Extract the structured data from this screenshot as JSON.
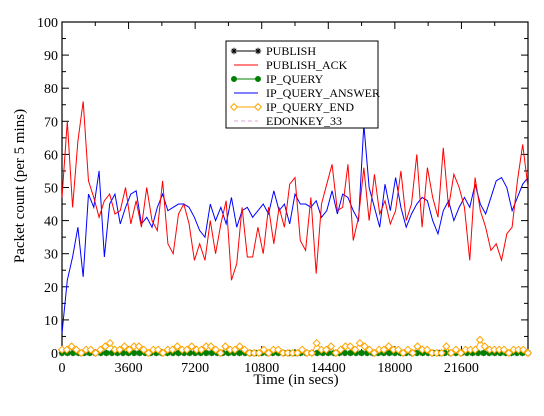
{
  "chart_data": {
    "type": "line",
    "xlabel": "Time (in secs)",
    "ylabel": "Packet count (per 5 mins)",
    "xlim": [
      0,
      25200
    ],
    "ylim": [
      0,
      100
    ],
    "xticks": [
      0,
      3600,
      7200,
      10800,
      14400,
      18000,
      21600
    ],
    "yticks": [
      0,
      10,
      20,
      30,
      40,
      50,
      60,
      70,
      80,
      90,
      100
    ],
    "grid": false,
    "legend_position": "top-center",
    "x_step": 300,
    "series": [
      {
        "name": "PUBLISH",
        "color": "#000000",
        "marker": "star",
        "values": [
          0,
          0,
          0,
          0,
          0,
          0,
          0,
          0,
          0,
          0,
          0,
          0,
          0,
          0,
          0,
          0,
          0,
          0,
          0,
          0,
          0,
          0,
          0,
          0,
          0,
          0,
          0,
          0,
          0,
          0,
          0,
          0,
          0,
          0,
          0,
          0,
          0,
          0,
          0,
          0,
          0,
          0,
          0,
          0,
          0,
          0,
          0,
          0,
          0,
          0,
          0,
          0,
          0,
          0,
          0,
          0,
          0,
          0,
          0,
          0,
          0,
          0,
          0,
          0,
          0,
          0,
          0,
          0,
          0,
          0,
          0,
          0,
          0,
          0,
          0,
          0,
          0,
          0,
          0,
          0,
          0,
          0,
          0,
          0,
          0
        ]
      },
      {
        "name": "PUBLISH_ACK",
        "color": "#ff0000",
        "marker": "none",
        "values": [
          47,
          70,
          44,
          64,
          76,
          52,
          47,
          41,
          46,
          48,
          42,
          43,
          50,
          39,
          46,
          38,
          50,
          40,
          37,
          52,
          33,
          30,
          42,
          45,
          39,
          28,
          33,
          28,
          40,
          30,
          39,
          46,
          22,
          27,
          44,
          29,
          29,
          38,
          30,
          44,
          33,
          44,
          38,
          51,
          53,
          34,
          31,
          47,
          24,
          45,
          51,
          57,
          43,
          44,
          57,
          34,
          41,
          56,
          40,
          54,
          42,
          46,
          39,
          43,
          55,
          40,
          45,
          60,
          38,
          56,
          47,
          41,
          62,
          44,
          54,
          50,
          44,
          28,
          53,
          43,
          38,
          31,
          33,
          28,
          36,
          38,
          52,
          63,
          50
        ]
      },
      {
        "name": "IP_QUERY",
        "color": "#008000",
        "marker": "circle",
        "values": [
          0,
          0,
          0,
          0,
          0,
          0,
          0,
          0,
          0,
          0,
          0,
          0,
          0,
          0,
          0,
          0,
          0,
          0,
          0,
          0,
          0,
          0,
          0,
          0,
          0,
          0,
          0,
          0,
          0,
          0,
          0,
          0,
          0,
          0,
          0,
          0,
          0,
          0,
          0,
          0,
          0,
          0,
          0,
          0,
          0,
          0,
          0,
          0,
          0,
          0,
          0,
          0,
          0,
          0,
          0,
          0,
          0,
          0,
          0,
          0,
          0,
          0,
          0,
          0,
          0,
          0,
          0,
          0,
          0,
          0,
          0,
          0,
          0,
          0,
          0,
          0,
          0,
          0,
          0,
          0,
          0,
          0,
          0,
          0,
          0
        ]
      },
      {
        "name": "IP_QUERY_ANSWER",
        "color": "#0000ff",
        "marker": "none",
        "values": [
          6,
          22,
          29,
          38,
          23,
          48,
          44,
          55,
          29,
          45,
          48,
          39,
          44,
          48,
          49,
          39,
          41,
          38,
          44,
          48,
          43,
          44,
          45,
          45,
          44,
          41,
          37,
          35,
          45,
          40,
          44,
          39,
          47,
          38,
          43,
          44,
          41,
          43,
          45,
          42,
          49,
          43,
          45,
          39,
          48,
          45,
          45,
          44,
          46,
          41,
          43,
          49,
          42,
          48,
          47,
          43,
          40,
          69,
          50,
          44,
          38,
          51,
          43,
          53,
          44,
          38,
          42,
          45,
          47,
          46,
          40,
          36,
          43,
          46,
          40,
          44,
          47,
          44,
          51,
          45,
          42,
          47,
          52,
          53,
          50,
          43,
          47,
          51,
          53
        ]
      },
      {
        "name": "IP_QUERY_END",
        "color": "#ffa500",
        "marker": "diamond",
        "values": [
          1,
          1,
          2,
          1,
          0,
          1,
          1,
          0,
          1,
          2,
          3,
          1,
          1,
          2,
          1,
          2,
          2,
          1,
          0,
          1,
          1,
          0,
          1,
          1,
          2,
          1,
          1,
          2,
          1,
          1,
          2,
          2,
          1,
          0,
          2,
          1,
          1,
          2,
          1,
          0,
          0,
          0,
          1,
          0,
          1,
          1,
          0,
          0,
          0,
          0,
          1,
          0,
          0,
          3,
          1,
          1,
          2,
          0,
          1,
          2,
          2,
          1,
          3,
          2,
          1,
          0,
          1,
          1,
          2,
          1,
          1,
          0,
          1,
          0,
          2,
          1,
          1,
          0,
          0,
          0,
          2,
          0,
          1,
          0,
          1,
          1,
          1,
          4,
          2,
          1,
          1,
          1,
          1,
          0,
          1,
          1,
          1,
          0
        ]
      },
      {
        "name": "EDONKEY_33",
        "color": "#dda0dd",
        "marker": "none",
        "dashed": true,
        "values": [
          0,
          0,
          0,
          0,
          0,
          0,
          0,
          0,
          0,
          0,
          0,
          0,
          0,
          0,
          0,
          0,
          0,
          0,
          0,
          0,
          0,
          0,
          0,
          0,
          0,
          0,
          0,
          0,
          0,
          0,
          0,
          0,
          0,
          0,
          0,
          0,
          0,
          0,
          0,
          0,
          0,
          0,
          0,
          0,
          0,
          0,
          0,
          0,
          0,
          0,
          0,
          0,
          0,
          0,
          0,
          0,
          0,
          0,
          0,
          0,
          0,
          0,
          0,
          0,
          0,
          0,
          0,
          0,
          0,
          0,
          0,
          0,
          0,
          0,
          0,
          0,
          0,
          0,
          0,
          0,
          0,
          0,
          0,
          0,
          0
        ]
      }
    ]
  }
}
